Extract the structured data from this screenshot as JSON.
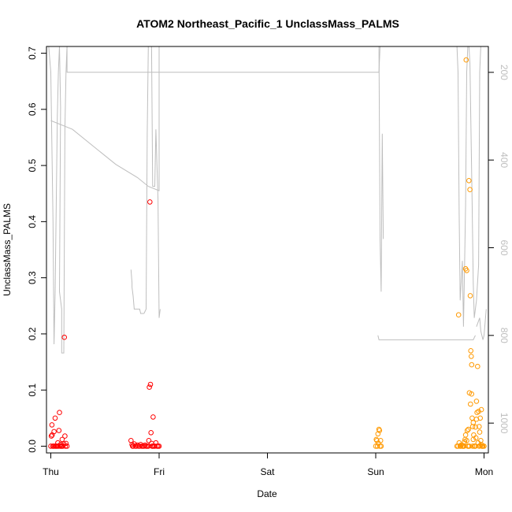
{
  "chart_data": {
    "type": "scatter",
    "title": "ATOM2 Northeast_Pacific_1 UnclassMass_PALMS",
    "xlabel": "Date",
    "ylabel": "UnclassMass_PALMS",
    "x_unit": "days since Thu 00:00",
    "xlim": [
      -0.04,
      4.04
    ],
    "ylim": [
      -0.012,
      0.712
    ],
    "x_ticks": [
      {
        "value": 0,
        "label": "Thu"
      },
      {
        "value": 1,
        "label": "Fri"
      },
      {
        "value": 2,
        "label": "Sat"
      },
      {
        "value": 3,
        "label": "Sun"
      },
      {
        "value": 4,
        "label": "Mon"
      }
    ],
    "y_ticks": [
      {
        "value": 0.0,
        "label": "0.0"
      },
      {
        "value": 0.1,
        "label": "0.1"
      },
      {
        "value": 0.2,
        "label": "0.2"
      },
      {
        "value": 0.3,
        "label": "0.3"
      },
      {
        "value": 0.4,
        "label": "0.4"
      },
      {
        "value": 0.5,
        "label": "0.5"
      },
      {
        "value": 0.6,
        "label": "0.6"
      },
      {
        "value": 0.7,
        "label": "0.7"
      }
    ],
    "y2_label": "",
    "y2lim": [
      1068,
      141
    ],
    "y2_ticks": [
      {
        "value": 200,
        "label": "200"
      },
      {
        "value": 400,
        "label": "400"
      },
      {
        "value": 600,
        "label": "600"
      },
      {
        "value": 800,
        "label": "800"
      },
      {
        "value": 1000,
        "label": "1000"
      }
    ],
    "colors": {
      "red": "#ff0000",
      "orange": "#ff9900",
      "altitude_line": "#bebebe",
      "axis": "#000000",
      "y2_tick_label": "#bebebe"
    },
    "altitude_segments": [
      [
        [
          -0.02,
          140
        ],
        [
          0.0,
          200
        ],
        [
          0.02,
          540
        ],
        [
          0.03,
          820
        ],
        [
          0.04,
          700
        ],
        [
          0.06,
          300
        ],
        [
          0.07,
          200
        ],
        [
          0.08,
          140
        ],
        [
          0.09,
          280
        ],
        [
          0.08,
          700
        ],
        [
          0.1,
          740
        ],
        [
          0.1,
          840
        ],
        [
          0.12,
          840
        ],
        [
          0.13,
          330
        ],
        [
          0.14,
          200
        ],
        [
          0.15,
          140
        ],
        [
          0.15,
          200
        ],
        [
          0.2,
          200
        ],
        [
          0.5,
          200
        ],
        [
          0.8,
          200
        ],
        [
          0.95,
          200
        ],
        [
          1.0,
          200
        ],
        [
          1.05,
          200
        ],
        [
          1.2,
          200
        ],
        [
          1.5,
          200
        ],
        [
          1.8,
          200
        ],
        [
          2.1,
          200
        ],
        [
          2.4,
          200
        ],
        [
          2.7,
          200
        ],
        [
          2.9,
          200
        ],
        [
          3.03,
          200
        ],
        [
          3.04,
          140
        ]
      ],
      [
        [
          0.0,
          310
        ],
        [
          0.2,
          330
        ],
        [
          0.4,
          370
        ],
        [
          0.6,
          410
        ],
        [
          0.8,
          440
        ],
        [
          0.9,
          460
        ],
        [
          1.0,
          470
        ],
        [
          1.0,
          140
        ]
      ],
      [
        [
          0.74,
          650
        ],
        [
          0.75,
          680
        ],
        [
          0.75,
          690
        ],
        [
          0.76,
          710
        ],
        [
          0.77,
          740
        ],
        [
          0.82,
          740
        ],
        [
          0.83,
          750
        ],
        [
          0.86,
          750
        ]
      ],
      [
        [
          0.86,
          750
        ],
        [
          0.88,
          740
        ],
        [
          0.89,
          340
        ],
        [
          0.9,
          140
        ]
      ],
      [
        [
          0.93,
          140
        ],
        [
          0.94,
          460
        ],
        [
          0.96,
          460
        ],
        [
          0.97,
          330
        ],
        [
          0.99,
          490
        ],
        [
          1.0,
          760
        ],
        [
          1.01,
          740
        ]
      ],
      [
        [
          3.03,
          140
        ],
        [
          3.04,
          580
        ],
        [
          3.05,
          700
        ],
        [
          3.06,
          340
        ],
        [
          3.07,
          580
        ]
      ],
      [
        [
          3.02,
          800
        ],
        [
          3.03,
          810
        ],
        [
          3.5,
          810
        ],
        [
          3.9,
          810
        ],
        [
          3.92,
          800
        ]
      ],
      [
        [
          3.75,
          140
        ],
        [
          3.76,
          200
        ],
        [
          3.77,
          520
        ],
        [
          3.78,
          720
        ],
        [
          3.8,
          630
        ],
        [
          3.81,
          780
        ],
        [
          3.82,
          640
        ],
        [
          3.83,
          500
        ],
        [
          3.84,
          200
        ],
        [
          3.85,
          140
        ]
      ],
      [
        [
          3.86,
          140
        ],
        [
          3.87,
          180
        ],
        [
          3.89,
          500
        ],
        [
          3.9,
          680
        ],
        [
          3.91,
          760
        ],
        [
          3.93,
          720
        ],
        [
          3.95,
          640
        ],
        [
          3.96,
          200
        ],
        [
          3.97,
          140
        ]
      ],
      [
        [
          3.93,
          780
        ],
        [
          3.96,
          760
        ],
        [
          3.97,
          790
        ],
        [
          3.99,
          810
        ],
        [
          4.0,
          800
        ],
        [
          4.02,
          740
        ]
      ]
    ],
    "series": [
      {
        "color": "red",
        "points": [
          [
            0.0,
            0.0
          ],
          [
            0.005,
            0.018
          ],
          [
            0.01,
            0.038
          ],
          [
            0.012,
            0.02
          ],
          [
            0.018,
            0.0
          ],
          [
            0.025,
            0.0
          ],
          [
            0.03,
            0.026
          ],
          [
            0.035,
            0.0
          ],
          [
            0.04,
            0.05
          ],
          [
            0.045,
            0.0
          ],
          [
            0.05,
            0.0
          ],
          [
            0.06,
            0.0
          ],
          [
            0.065,
            0.006
          ],
          [
            0.07,
            0.0
          ],
          [
            0.075,
            0.028
          ],
          [
            0.08,
            0.06
          ],
          [
            0.085,
            0.0
          ],
          [
            0.09,
            0.003
          ],
          [
            0.095,
            0.0
          ],
          [
            0.1,
            0.0
          ],
          [
            0.105,
            0.012
          ],
          [
            0.11,
            0.0
          ],
          [
            0.12,
            0.004
          ],
          [
            0.125,
            0.194
          ],
          [
            0.13,
            0.018
          ],
          [
            0.135,
            0.0
          ],
          [
            0.14,
            0.005
          ],
          [
            0.15,
            0.0
          ],
          [
            0.74,
            0.01
          ],
          [
            0.75,
            0.003
          ],
          [
            0.755,
            0.0
          ],
          [
            0.76,
            0.0
          ],
          [
            0.77,
            0.004
          ],
          [
            0.78,
            0.0
          ],
          [
            0.79,
            0.0
          ],
          [
            0.8,
            0.002
          ],
          [
            0.81,
            0.0
          ],
          [
            0.82,
            0.0
          ],
          [
            0.83,
            0.003
          ],
          [
            0.84,
            0.0
          ],
          [
            0.85,
            0.0
          ],
          [
            0.86,
            0.0
          ],
          [
            0.87,
            0.002
          ],
          [
            0.88,
            0.0
          ],
          [
            0.89,
            0.0
          ],
          [
            0.9,
            0.0
          ],
          [
            0.905,
            0.01
          ],
          [
            0.91,
            0.105
          ],
          [
            0.915,
            0.435
          ],
          [
            0.92,
            0.11
          ],
          [
            0.925,
            0.024
          ],
          [
            0.93,
            0.005
          ],
          [
            0.935,
            0.0
          ],
          [
            0.94,
            0.0
          ],
          [
            0.945,
            0.052
          ],
          [
            0.95,
            0.0
          ],
          [
            0.96,
            0.0
          ],
          [
            0.97,
            0.006
          ],
          [
            0.98,
            0.0
          ],
          [
            0.99,
            0.0
          ],
          [
            1.0,
            0.0
          ]
        ]
      },
      {
        "color": "orange",
        "points": [
          [
            3.0,
            0.0
          ],
          [
            3.005,
            0.012
          ],
          [
            3.01,
            0.01
          ],
          [
            3.015,
            0.0
          ],
          [
            3.02,
            0.022
          ],
          [
            3.025,
            0.005
          ],
          [
            3.03,
            0.03
          ],
          [
            3.035,
            0.028
          ],
          [
            3.04,
            0.0
          ],
          [
            3.045,
            0.01
          ],
          [
            3.05,
            0.0
          ],
          [
            3.75,
            0.0
          ],
          [
            3.76,
            0.0
          ],
          [
            3.765,
            0.234
          ],
          [
            3.77,
            0.006
          ],
          [
            3.78,
            0.0
          ],
          [
            3.785,
            0.0
          ],
          [
            3.79,
            0.002
          ],
          [
            3.8,
            0.0
          ],
          [
            3.805,
            0.0
          ],
          [
            3.81,
            0.0
          ],
          [
            3.815,
            0.0
          ],
          [
            3.82,
            0.008
          ],
          [
            3.825,
            0.012
          ],
          [
            3.83,
            0.316
          ],
          [
            3.835,
            0.688
          ],
          [
            3.84,
            0.313
          ],
          [
            3.845,
            0.028
          ],
          [
            3.85,
            0.0
          ],
          [
            3.855,
            0.0
          ],
          [
            3.86,
            0.473
          ],
          [
            3.865,
            0.095
          ],
          [
            3.87,
            0.457
          ],
          [
            3.873,
            0.268
          ],
          [
            3.878,
            0.17
          ],
          [
            3.882,
            0.16
          ],
          [
            3.886,
            0.145
          ],
          [
            3.89,
            0.05
          ],
          [
            3.895,
            0.035
          ],
          [
            3.9,
            0.042
          ],
          [
            3.905,
            0.02
          ],
          [
            3.91,
            0.0
          ],
          [
            3.915,
            0.0
          ],
          [
            3.92,
            0.034
          ],
          [
            3.925,
            0.015
          ],
          [
            3.93,
            0.08
          ],
          [
            3.935,
            0.06
          ],
          [
            3.94,
            0.142
          ],
          [
            3.945,
            0.006
          ],
          [
            3.95,
            0.062
          ],
          [
            3.955,
            0.0
          ],
          [
            3.96,
            0.025
          ],
          [
            3.965,
            0.05
          ],
          [
            3.97,
            0.01
          ],
          [
            3.975,
            0.003
          ],
          [
            3.98,
            0.0
          ],
          [
            3.985,
            0.0
          ],
          [
            3.99,
            0.0
          ],
          [
            4.0,
            0.0
          ],
          [
            3.83,
            0.02
          ],
          [
            3.84,
            0.01
          ],
          [
            3.855,
            0.03
          ],
          [
            3.865,
            0.0
          ],
          [
            3.875,
            0.075
          ],
          [
            3.885,
            0.093
          ],
          [
            3.895,
            0.0
          ],
          [
            3.9,
            0.012
          ],
          [
            3.92,
            0.0
          ],
          [
            3.93,
            0.048
          ],
          [
            3.955,
            0.035
          ],
          [
            3.965,
            0.001
          ],
          [
            3.975,
            0.065
          ]
        ]
      }
    ]
  }
}
